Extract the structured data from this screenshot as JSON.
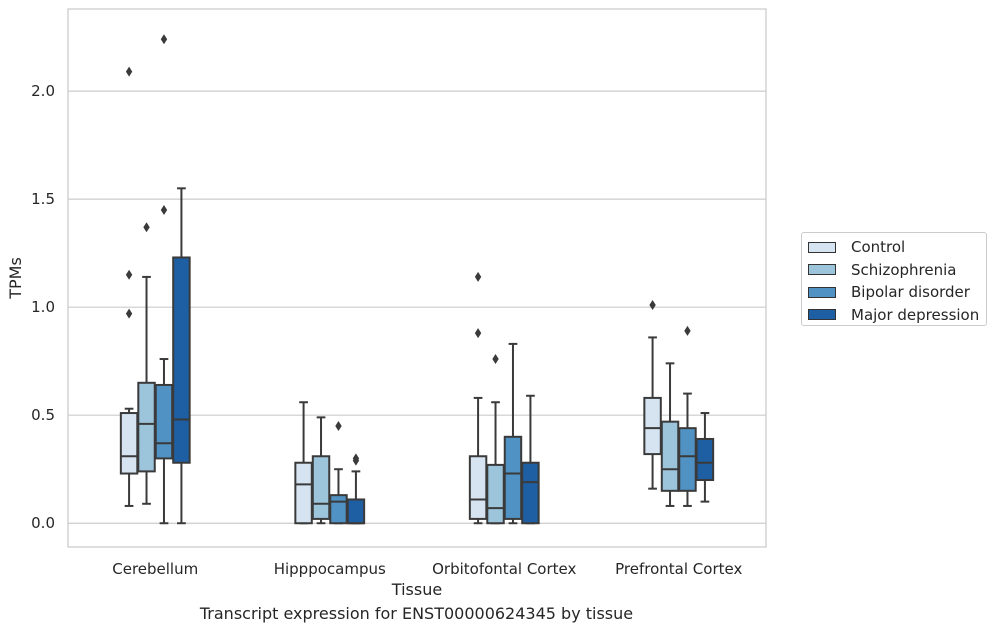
{
  "caption": "Transcript expression for ENST00000624345 by tissue",
  "colors": {
    "Control": "#d6e4f2",
    "Schizophrenia": "#9cc5dc",
    "Bipolar disorder": "#4f92c3",
    "Major depression": "#1e5fa3",
    "grid": "#cccccc",
    "frame": "#cccccc",
    "line": "#3a3a3a"
  },
  "legend": {
    "placement": "right",
    "entries": [
      "Control",
      "Schizophrenia",
      "Bipolar disorder",
      "Major depression"
    ]
  },
  "chart_data": {
    "type": "boxplot",
    "xlabel": "Tissue",
    "ylabel": "TPMs",
    "ylim": [
      -0.11,
      2.38
    ],
    "yticks": [
      "0.0",
      "0.5",
      "1.0",
      "1.5",
      "2.0"
    ],
    "grid": "horizontal",
    "categories": [
      "Cerebellum",
      "Hipppocampus",
      "Orbitofontal Cortex",
      "Prefrontal Cortex"
    ],
    "series": [
      {
        "name": "Control",
        "boxes": [
          {
            "whislo": 0.08,
            "q1": 0.23,
            "med": 0.31,
            "q3": 0.51,
            "whishi": 0.53,
            "fliers": [
              0.97,
              1.15,
              2.09
            ]
          },
          {
            "whislo": 0.0,
            "q1": 0.0,
            "med": 0.18,
            "q3": 0.28,
            "whishi": 0.56,
            "fliers": []
          },
          {
            "whislo": 0.0,
            "q1": 0.02,
            "med": 0.11,
            "q3": 0.31,
            "whishi": 0.58,
            "fliers": [
              0.88,
              1.14
            ]
          },
          {
            "whislo": 0.16,
            "q1": 0.32,
            "med": 0.44,
            "q3": 0.58,
            "whishi": 0.86,
            "fliers": [
              1.01
            ]
          }
        ]
      },
      {
        "name": "Schizophrenia",
        "boxes": [
          {
            "whislo": 0.09,
            "q1": 0.24,
            "med": 0.46,
            "q3": 0.65,
            "whishi": 1.14,
            "fliers": [
              1.37
            ]
          },
          {
            "whislo": 0.0,
            "q1": 0.02,
            "med": 0.09,
            "q3": 0.31,
            "whishi": 0.49,
            "fliers": []
          },
          {
            "whislo": 0.0,
            "q1": 0.0,
            "med": 0.07,
            "q3": 0.27,
            "whishi": 0.56,
            "fliers": [
              0.76
            ]
          },
          {
            "whislo": 0.08,
            "q1": 0.15,
            "med": 0.25,
            "q3": 0.47,
            "whishi": 0.74,
            "fliers": []
          }
        ]
      },
      {
        "name": "Bipolar disorder",
        "boxes": [
          {
            "whislo": 0.0,
            "q1": 0.3,
            "med": 0.37,
            "q3": 0.64,
            "whishi": 0.76,
            "fliers": [
              1.45,
              2.24
            ]
          },
          {
            "whislo": 0.0,
            "q1": 0.0,
            "med": 0.1,
            "q3": 0.13,
            "whishi": 0.25,
            "fliers": [
              0.45
            ]
          },
          {
            "whislo": 0.0,
            "q1": 0.02,
            "med": 0.23,
            "q3": 0.4,
            "whishi": 0.83,
            "fliers": []
          },
          {
            "whislo": 0.08,
            "q1": 0.15,
            "med": 0.31,
            "q3": 0.44,
            "whishi": 0.6,
            "fliers": [
              0.89
            ]
          }
        ]
      },
      {
        "name": "Major depression",
        "boxes": [
          {
            "whislo": 0.0,
            "q1": 0.28,
            "med": 0.48,
            "q3": 1.23,
            "whishi": 1.55,
            "fliers": []
          },
          {
            "whislo": 0.0,
            "q1": 0.0,
            "med": 0.0,
            "q3": 0.11,
            "whishi": 0.24,
            "fliers": [
              0.29,
              0.3
            ]
          },
          {
            "whislo": 0.0,
            "q1": 0.0,
            "med": 0.19,
            "q3": 0.28,
            "whishi": 0.59,
            "fliers": []
          },
          {
            "whislo": 0.1,
            "q1": 0.2,
            "med": 0.28,
            "q3": 0.39,
            "whishi": 0.51,
            "fliers": []
          }
        ]
      }
    ]
  }
}
